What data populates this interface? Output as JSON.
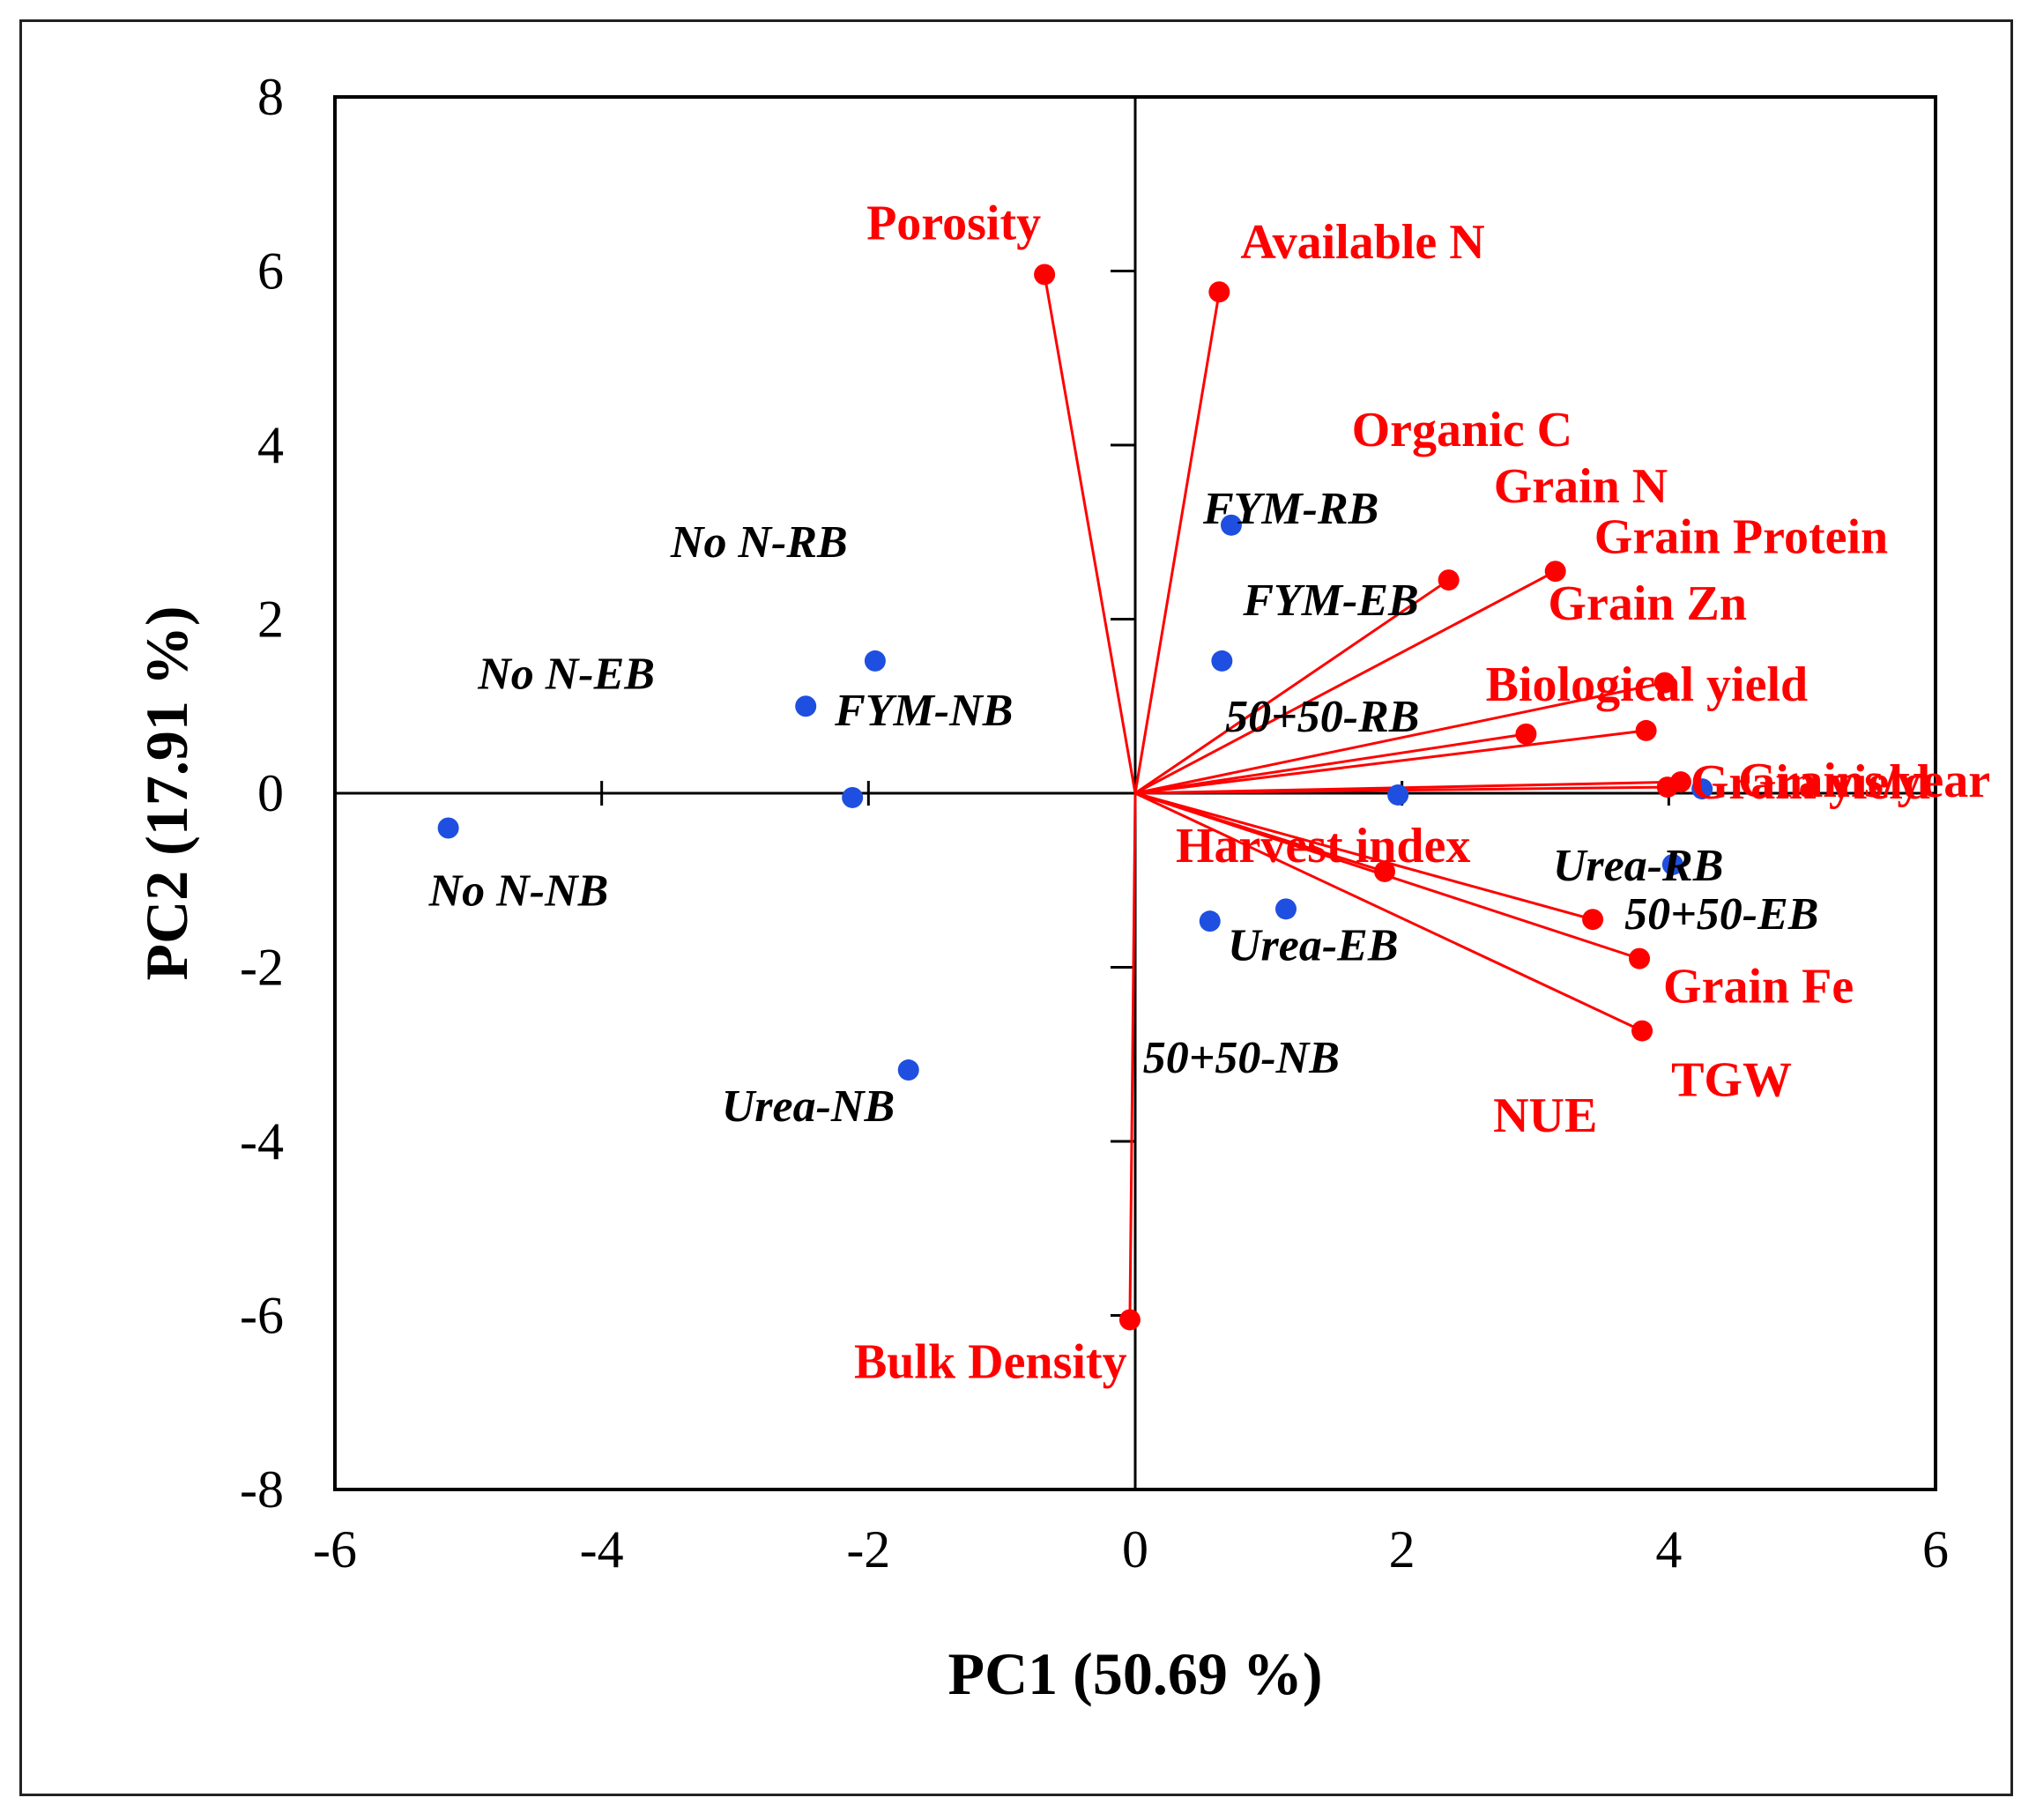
{
  "chart_data": {
    "type": "scatter",
    "title": "",
    "xlabel": "PC1 (50.69 %)",
    "ylabel": "PC2 (17.91 %)",
    "xlim": [
      -6,
      6
    ],
    "ylim": [
      -8,
      8
    ],
    "xticks": [
      -6,
      -4,
      -2,
      0,
      2,
      4,
      6
    ],
    "yticks": [
      -8,
      -6,
      -4,
      -2,
      0,
      2,
      4,
      6,
      8
    ],
    "grid": false,
    "colors": {
      "scores": "#1f4fe0",
      "loadings": "#ff0000",
      "axes": "#000000"
    },
    "scores": [
      {
        "x": -5.15,
        "y": -0.4,
        "label": "No N-NB"
      },
      {
        "x": -2.47,
        "y": 1.0,
        "label": "No N-EB"
      },
      {
        "x": -1.95,
        "y": 1.52,
        "label": "No N-RB"
      },
      {
        "x": -2.12,
        "y": -0.05,
        "label": "FYM-NB"
      },
      {
        "x": -1.7,
        "y": -3.18,
        "label": "Urea-NB"
      },
      {
        "x": 0.72,
        "y": 3.08,
        "label": "FYM-RB"
      },
      {
        "x": 0.65,
        "y": 1.52,
        "label": "FYM-EB"
      },
      {
        "x": 1.97,
        "y": -0.02,
        "label": "50+50-RB"
      },
      {
        "x": 1.13,
        "y": -1.33,
        "label": "Urea-EB"
      },
      {
        "x": 0.56,
        "y": -1.47,
        "label": "50+50-NB"
      },
      {
        "x": 4.03,
        "y": -0.82,
        "label": "Urea-RB"
      },
      {
        "x": 4.25,
        "y": 0.05,
        "label": "50+50-EB"
      }
    ],
    "loadings": [
      {
        "x": -0.68,
        "y": 5.96,
        "label": "Porosity"
      },
      {
        "x": 0.63,
        "y": 5.76,
        "label": "Available N"
      },
      {
        "x": 2.35,
        "y": 2.45,
        "label": "Organic C"
      },
      {
        "x": 3.15,
        "y": 2.55,
        "label": "Grain N"
      },
      {
        "x": 3.97,
        "y": 1.27,
        "label": "Grain Protein"
      },
      {
        "x": 2.93,
        "y": 0.68,
        "label": "Grain Zn"
      },
      {
        "x": 3.83,
        "y": 0.72,
        "label": "Biological yield"
      },
      {
        "x": 4.09,
        "y": 0.13,
        "label": "Grains/year"
      },
      {
        "x": 3.99,
        "y": 0.07,
        "label": "Grain yield"
      },
      {
        "x": 1.87,
        "y": -0.9,
        "label": "Harvest index"
      },
      {
        "x": 3.43,
        "y": -1.45,
        "label": "NUE"
      },
      {
        "x": 3.78,
        "y": -1.9,
        "label": "Grain Fe"
      },
      {
        "x": 3.8,
        "y": -2.73,
        "label": "TGW"
      },
      {
        "x": -0.04,
        "y": -6.05,
        "label": "Bulk Density"
      }
    ]
  }
}
